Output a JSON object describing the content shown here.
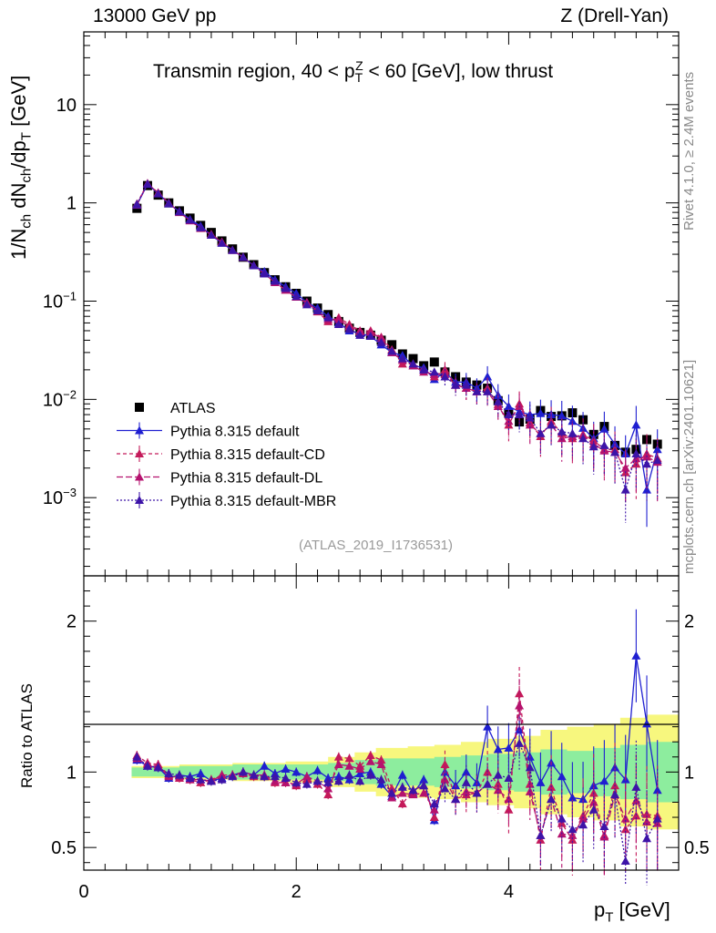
{
  "header": {
    "left": "13000 GeV pp",
    "right": "Z (Drell-Yan)"
  },
  "side": {
    "rivet": "Rivet 4.1.0, ≥ 2.4M events",
    "mcplots": "mcplots.cern.ch [arXiv:2401.10621]"
  },
  "chart_data": [
    {
      "type": "line",
      "panel": "main",
      "title": "Transmin region, 40 < p_T^Z < 60 [GeV], low thrust",
      "ylabel": "1/N_ch dN_ch/dp_T [GeV]",
      "xlabel": "p_T [GeV]",
      "yscale": "log",
      "xlim": [
        0,
        5.6
      ],
      "ylim": [
        0.00016,
        55
      ],
      "xticks": [
        "0",
        "2",
        "4"
      ],
      "yticks": [
        "10^-3",
        "10^-2",
        "10^-1",
        "1",
        "10"
      ],
      "watermark": "(ATLAS_2019_I1736531)",
      "x": [
        0.5,
        0.6,
        0.7,
        0.8,
        0.9,
        1.0,
        1.1,
        1.2,
        1.3,
        1.4,
        1.5,
        1.6,
        1.7,
        1.8,
        1.9,
        2.0,
        2.1,
        2.2,
        2.3,
        2.4,
        2.5,
        2.6,
        2.7,
        2.8,
        2.9,
        3.0,
        3.1,
        3.2,
        3.3,
        3.4,
        3.5,
        3.6,
        3.7,
        3.8,
        3.9,
        4.0,
        4.1,
        4.2,
        4.3,
        4.4,
        4.5,
        4.6,
        4.7,
        4.8,
        4.9,
        5.0,
        5.1,
        5.2,
        5.3,
        5.4
      ],
      "series": [
        {
          "name": "ATLAS",
          "color": "#000000",
          "marker": "square",
          "values": [
            0.88,
            1.5,
            1.2,
            1.0,
            0.83,
            0.7,
            0.59,
            0.5,
            0.41,
            0.34,
            0.28,
            0.235,
            0.195,
            0.165,
            0.14,
            0.12,
            0.1,
            0.085,
            0.073,
            0.062,
            0.053,
            0.048,
            0.045,
            0.04,
            0.036,
            0.029,
            0.026,
            0.022,
            0.024,
            0.019,
            0.017,
            0.015,
            0.014,
            0.013,
            0.0097,
            0.0073,
            0.0059,
            0.0063,
            0.0077,
            0.0067,
            0.0068,
            0.0073,
            0.0062,
            0.0044,
            0.0053,
            0.0034,
            0.0029,
            0.0031,
            0.0039,
            0.0035
          ]
        },
        {
          "name": "Pythia 8.315 default",
          "color": "#1f1fd1",
          "marker": "triangle",
          "dash": "",
          "values": [
            0.95,
            1.55,
            1.25,
            0.98,
            0.82,
            0.68,
            0.58,
            0.47,
            0.39,
            0.33,
            0.28,
            0.23,
            0.2,
            0.165,
            0.14,
            0.12,
            0.097,
            0.085,
            0.07,
            0.06,
            0.05,
            0.047,
            0.044,
            0.036,
            0.03,
            0.028,
            0.022,
            0.021,
            0.016,
            0.019,
            0.015,
            0.015,
            0.013,
            0.017,
            0.011,
            0.0085,
            0.0075,
            0.007,
            0.0072,
            0.007,
            0.0068,
            0.006,
            0.0051,
            0.004,
            0.005,
            0.0035,
            0.0028,
            0.0055,
            0.0012,
            0.0031
          ]
        },
        {
          "name": "Pythia 8.315 default-CD",
          "color": "#c41a5a",
          "marker": "triangle",
          "dash": "4 3",
          "values": [
            0.98,
            1.58,
            1.27,
            1.0,
            0.8,
            0.66,
            0.55,
            0.48,
            0.4,
            0.33,
            0.28,
            0.23,
            0.19,
            0.155,
            0.13,
            0.11,
            0.095,
            0.078,
            0.062,
            0.068,
            0.058,
            0.05,
            0.05,
            0.043,
            0.032,
            0.023,
            0.023,
            0.02,
            0.017,
            0.02,
            0.014,
            0.013,
            0.012,
            0.013,
            0.0089,
            0.0055,
            0.009,
            0.0058,
            0.0042,
            0.006,
            0.0045,
            0.004,
            0.0044,
            0.0038,
            0.0031,
            0.0031,
            0.0018,
            0.0022,
            0.0028,
            0.0025
          ]
        },
        {
          "name": "Pythia 8.315 default-DL",
          "color": "#b5126e",
          "marker": "triangle",
          "dash": "7 3",
          "values": [
            0.96,
            1.57,
            1.26,
            0.99,
            0.81,
            0.66,
            0.56,
            0.47,
            0.4,
            0.33,
            0.28,
            0.23,
            0.19,
            0.155,
            0.13,
            0.11,
            0.097,
            0.08,
            0.065,
            0.065,
            0.055,
            0.049,
            0.048,
            0.042,
            0.03,
            0.025,
            0.022,
            0.019,
            0.018,
            0.018,
            0.014,
            0.013,
            0.012,
            0.012,
            0.0085,
            0.006,
            0.0085,
            0.0055,
            0.0045,
            0.0055,
            0.004,
            0.0042,
            0.0043,
            0.0035,
            0.003,
            0.0029,
            0.002,
            0.0025,
            0.0026,
            0.0023
          ]
        },
        {
          "name": "Pythia 8.315 default-MBR",
          "color": "#3d14a8",
          "marker": "triangle",
          "dash": "2 2",
          "values": [
            0.97,
            1.56,
            1.24,
            0.99,
            0.81,
            0.67,
            0.56,
            0.47,
            0.39,
            0.33,
            0.28,
            0.23,
            0.19,
            0.16,
            0.135,
            0.112,
            0.092,
            0.08,
            0.068,
            0.058,
            0.052,
            0.045,
            0.044,
            0.038,
            0.031,
            0.026,
            0.023,
            0.02,
            0.019,
            0.017,
            0.014,
            0.014,
            0.012,
            0.012,
            0.0095,
            0.007,
            0.007,
            0.0065,
            0.0045,
            0.0055,
            0.0047,
            0.0045,
            0.004,
            0.0033,
            0.0034,
            0.0029,
            0.0012,
            0.0028,
            0.0022,
            0.0024
          ]
        }
      ]
    },
    {
      "type": "line",
      "panel": "ratio",
      "ylabel": "Ratio to ATLAS",
      "xlabel": "p_T [GeV]",
      "xlim": [
        0,
        5.6
      ],
      "ylim": [
        0.35,
        2.3
      ],
      "yticks": [
        "0.5",
        "1",
        "2"
      ],
      "xticks": [
        "0",
        "2",
        "4"
      ],
      "band_x": [
        0.45,
        0.9,
        1.4,
        1.9,
        2.3,
        2.55,
        2.75,
        3.05,
        3.3,
        3.55,
        3.8,
        4.05,
        4.3,
        4.55,
        4.8,
        5.05,
        5.3,
        5.5
      ],
      "band_inner": [
        0.03,
        0.04,
        0.05,
        0.05,
        0.06,
        0.08,
        0.09,
        0.09,
        0.1,
        0.11,
        0.12,
        0.13,
        0.15,
        0.14,
        0.16,
        0.18,
        0.2,
        0.2
      ],
      "band_outer": [
        0.04,
        0.05,
        0.06,
        0.07,
        0.1,
        0.13,
        0.16,
        0.17,
        0.18,
        0.2,
        0.22,
        0.24,
        0.28,
        0.3,
        0.32,
        0.36,
        0.38,
        0.38
      ],
      "series": [
        {
          "name": "Pythia 8.315 default",
          "color": "#1f1fd1",
          "values": [
            1.08,
            1.04,
            1.03,
            0.96,
            0.98,
            0.97,
            0.99,
            0.94,
            0.96,
            0.98,
            1.0,
            0.98,
            1.04,
            0.99,
            1.02,
            1.0,
            0.97,
            1.01,
            0.96,
            0.97,
            0.95,
            0.99,
            1.0,
            0.92,
            0.84,
            0.98,
            0.86,
            0.95,
            0.68,
            1.0,
            0.91,
            1.0,
            0.93,
            1.3,
            1.15,
            1.16,
            1.28,
            1.1,
            0.93,
            1.06,
            0.97,
            0.83,
            0.82,
            0.91,
            0.94,
            1.03,
            0.95,
            1.77,
            1.32,
            0.88
          ]
        },
        {
          "name": "Pythia 8.315 default-CD",
          "color": "#c41a5a",
          "values": [
            1.11,
            1.06,
            1.05,
            0.98,
            0.96,
            0.95,
            0.93,
            0.95,
            0.98,
            0.98,
            0.99,
            0.97,
            0.97,
            0.93,
            0.93,
            0.91,
            0.95,
            0.92,
            0.85,
            1.1,
            1.09,
            1.04,
            1.11,
            1.08,
            0.89,
            0.79,
            0.88,
            0.91,
            0.7,
            1.05,
            0.82,
            0.85,
            0.86,
            1.0,
            0.92,
            0.75,
            1.52,
            0.92,
            0.55,
            0.9,
            0.66,
            0.55,
            0.71,
            0.86,
            0.58,
            0.91,
            0.62,
            0.71,
            0.72,
            0.71
          ]
        },
        {
          "name": "Pythia 8.315 default-DL",
          "color": "#b5126e",
          "values": [
            1.09,
            1.05,
            1.04,
            0.97,
            0.97,
            0.95,
            0.95,
            0.94,
            0.98,
            0.98,
            1.0,
            0.98,
            0.98,
            0.94,
            0.93,
            0.92,
            0.97,
            0.94,
            0.89,
            1.05,
            1.04,
            1.02,
            1.07,
            1.05,
            0.83,
            0.86,
            0.85,
            0.86,
            0.75,
            0.95,
            0.82,
            0.87,
            0.86,
            0.92,
            0.88,
            0.82,
            1.44,
            0.87,
            0.58,
            0.82,
            0.59,
            0.58,
            0.69,
            0.8,
            0.57,
            0.85,
            0.69,
            0.81,
            0.67,
            0.66
          ]
        },
        {
          "name": "Pythia 8.315 default-MBR",
          "color": "#3d14a8",
          "values": [
            1.1,
            1.04,
            1.03,
            0.99,
            0.98,
            0.96,
            0.95,
            0.94,
            0.95,
            0.97,
            1.0,
            0.98,
            0.97,
            0.97,
            0.96,
            0.93,
            0.92,
            0.94,
            0.93,
            0.94,
            0.98,
            0.94,
            0.98,
            0.95,
            0.86,
            0.9,
            0.88,
            0.91,
            0.79,
            0.89,
            0.82,
            0.93,
            0.86,
            0.92,
            0.98,
            0.96,
            1.19,
            1.03,
            0.58,
            0.82,
            0.69,
            0.62,
            0.65,
            0.75,
            0.64,
            0.85,
            0.41,
            0.9,
            0.56,
            0.69
          ]
        }
      ]
    }
  ]
}
